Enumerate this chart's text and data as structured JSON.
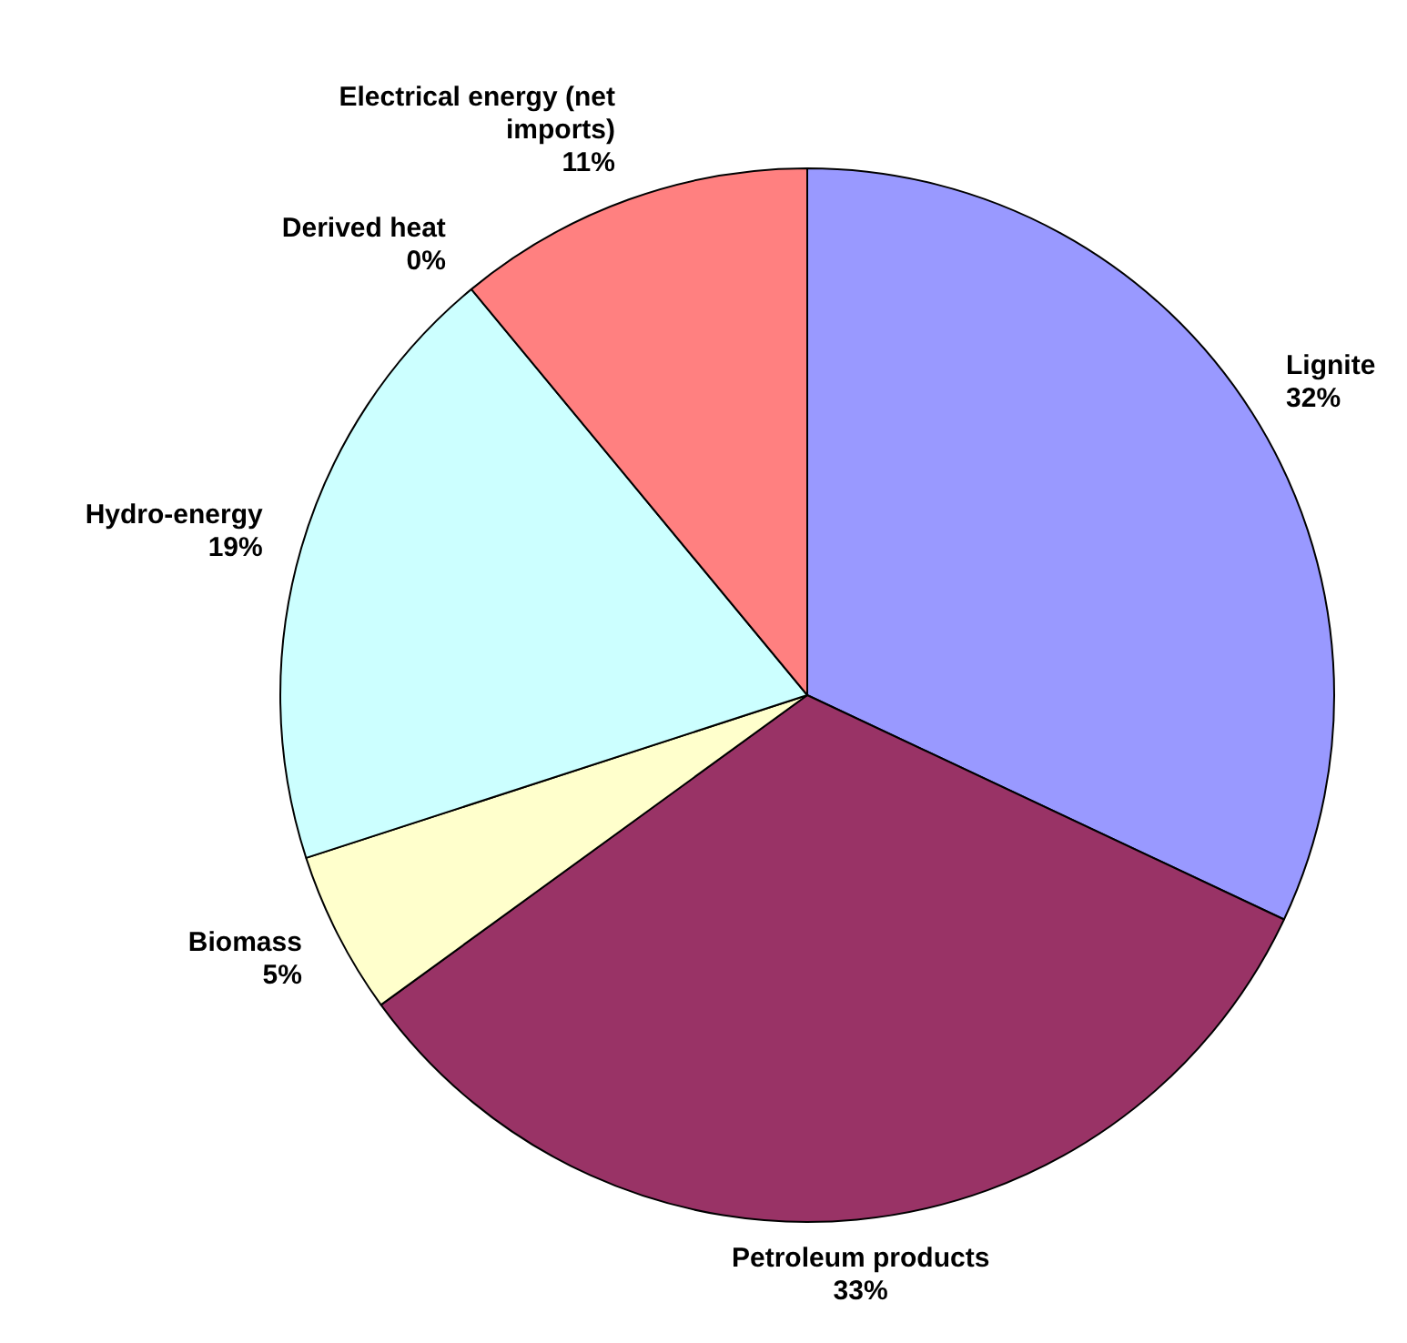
{
  "chart_data": {
    "type": "pie",
    "categories": [
      "Lignite",
      "Petroleum products",
      "Biomass",
      "Hydro-energy",
      "Derived heat",
      "Electrical energy (net imports)"
    ],
    "values": [
      32,
      33,
      5,
      19,
      0,
      11
    ],
    "colors": [
      "#9999ff",
      "#993366",
      "#ffffcc",
      "#ccffff",
      "#660066",
      "#ff8080"
    ],
    "value_labels": [
      "32%",
      "33%",
      "5%",
      "19%",
      "0%",
      "11%"
    ],
    "legend": false
  }
}
